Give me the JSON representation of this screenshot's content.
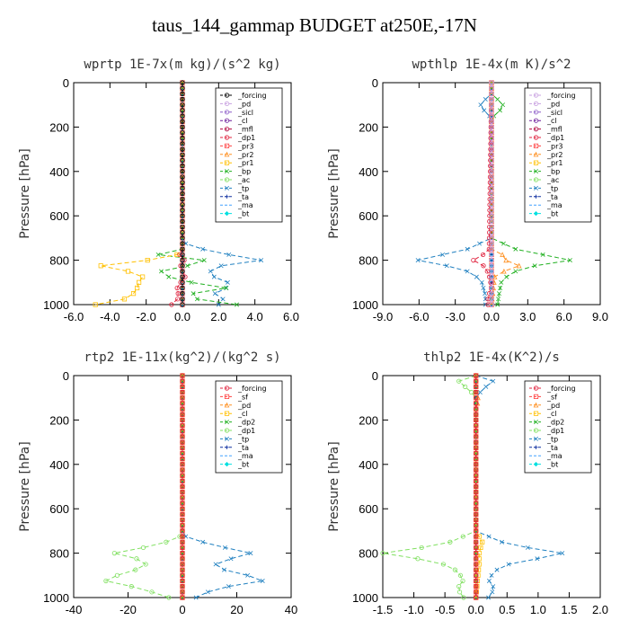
{
  "figure": {
    "title": "taus_144_gammap  BUDGET at250E,-17N"
  },
  "chart_data": [
    {
      "type": "line",
      "title": "wprtp  1E-7x(m kg)/(s^2 kg)",
      "ylabel": "Pressure [hPa]",
      "xlim": [
        -6,
        6
      ],
      "xticks": [
        -6,
        -4,
        -2,
        0,
        2,
        4,
        6
      ],
      "xtick_labels": [
        "-6.0",
        "-4.0",
        "-2.0",
        "0.0",
        "2.0",
        "4.0",
        "6.0"
      ],
      "ylim": [
        1000,
        0
      ],
      "yticks": [
        0,
        200,
        400,
        600,
        800,
        1000
      ],
      "legend_placement": "top-right",
      "series": [
        {
          "name": "_forcing",
          "color": "#000000",
          "marker": "o",
          "p": [
            0,
            1000
          ],
          "v": [
            0,
            0
          ]
        },
        {
          "name": "_pd",
          "color": "#c8a0e0",
          "marker": "o",
          "p": [
            0,
            1000
          ],
          "v": [
            0,
            0
          ]
        },
        {
          "name": "_sicl",
          "color": "#8c5cc8",
          "marker": "o",
          "p": [
            0,
            1000
          ],
          "v": [
            0,
            0
          ]
        },
        {
          "name": "_cl",
          "color": "#6a1a9a",
          "marker": "o",
          "p": [
            0,
            1000
          ],
          "v": [
            0,
            0
          ]
        },
        {
          "name": "_mfl",
          "color": "#b0003a",
          "marker": "o",
          "p": [
            0,
            1000
          ],
          "v": [
            0,
            0
          ]
        },
        {
          "name": "_dp1",
          "color": "#e0203c",
          "marker": "o",
          "p": [
            0,
            760,
            790,
            805,
            830,
            870,
            920,
            970,
            1000
          ],
          "v": [
            0,
            0,
            -0.3,
            0.3,
            -0.2,
            0.2,
            -0.3,
            -0.2,
            -0.6
          ]
        },
        {
          "name": "_pr3",
          "color": "#ff4040",
          "marker": "s",
          "p": [
            0,
            1000
          ],
          "v": [
            0,
            0
          ]
        },
        {
          "name": "_pr2",
          "color": "#ff9020",
          "marker": "^",
          "p": [
            0,
            1000
          ],
          "v": [
            0,
            0
          ]
        },
        {
          "name": "_pr1",
          "color": "#ffc000",
          "marker": "s",
          "p": [
            0,
            760,
            785,
            805,
            825,
            850,
            875,
            900,
            925,
            950,
            975,
            1000
          ],
          "v": [
            0,
            0,
            -0.5,
            -2.4,
            -4.5,
            -3.0,
            -2.2,
            -2.4,
            -2.5,
            -2.7,
            -3.2,
            -4.8
          ]
        },
        {
          "name": "_bp",
          "color": "#20b020",
          "marker": "x",
          "p": [
            0,
            750,
            780,
            810,
            830,
            860,
            900,
            930,
            960,
            1000
          ],
          "v": [
            0,
            0,
            -1.6,
            2.6,
            -0.5,
            -1.5,
            0.5,
            2.8,
            -0.5,
            3.0
          ]
        },
        {
          "name": "_ac",
          "color": "#80e060",
          "marker": "o",
          "p": [
            0,
            1000
          ],
          "v": [
            0,
            0
          ]
        },
        {
          "name": "_tp",
          "color": "#2080c0",
          "marker": "x",
          "p": [
            0,
            720,
            760,
            805,
            830,
            870,
            910,
            950,
            990,
            1000
          ],
          "v": [
            0,
            0,
            1.5,
            4.7,
            1.5,
            1.6,
            2.8,
            1.8,
            2.5,
            2.0
          ]
        },
        {
          "name": "_ta",
          "color": "#1030a0",
          "marker": "+",
          "p": [
            0,
            1000
          ],
          "v": [
            0,
            0
          ]
        },
        {
          "name": "_ma",
          "color": "#40a0ff",
          "marker": "-",
          "p": [
            0,
            1000
          ],
          "v": [
            0,
            0
          ]
        },
        {
          "name": "_bt",
          "color": "#00e0e0",
          "marker": "D",
          "p": [
            0,
            1000
          ],
          "v": [
            0,
            0
          ]
        }
      ]
    },
    {
      "type": "line",
      "title": "wpthlp  1E-4x(m K)/s^2",
      "ylabel": "Pressure [hPa]",
      "xlim": [
        -9,
        9
      ],
      "xticks": [
        -9,
        -6,
        -3,
        0,
        3,
        6,
        9
      ],
      "xtick_labels": [
        "-9.0",
        "-6.0",
        "-3.0",
        "0.0",
        "3.0",
        "6.0",
        "9.0"
      ],
      "ylim": [
        1000,
        0
      ],
      "yticks": [
        0,
        200,
        400,
        600,
        800,
        1000
      ],
      "legend_placement": "top-right",
      "series": [
        {
          "name": "_forcing",
          "color": "#c8a0e0",
          "marker": "o",
          "p": [
            0,
            1000
          ],
          "v": [
            0,
            0
          ]
        },
        {
          "name": "_pd",
          "color": "#c8a0e0",
          "marker": "o",
          "p": [
            0,
            1000
          ],
          "v": [
            0,
            0
          ]
        },
        {
          "name": "_sicl",
          "color": "#8c5cc8",
          "marker": "o",
          "p": [
            0,
            1000
          ],
          "v": [
            0,
            0
          ]
        },
        {
          "name": "_cl",
          "color": "#6a1a9a",
          "marker": "o",
          "p": [
            0,
            1000
          ],
          "v": [
            0,
            0
          ]
        },
        {
          "name": "_mfl",
          "color": "#b0003a",
          "marker": "o",
          "p": [
            0,
            1000
          ],
          "v": [
            0,
            0
          ]
        },
        {
          "name": "_dp1",
          "color": "#e0203c",
          "marker": "o",
          "p": [
            0,
            750,
            780,
            800,
            830,
            870,
            920,
            970,
            1000
          ],
          "v": [
            0,
            -0.2,
            -0.8,
            -1.5,
            -0.5,
            -0.2,
            0,
            -0.3,
            -0.3
          ]
        },
        {
          "name": "_pr3",
          "color": "#ff4040",
          "marker": "s",
          "p": [
            0,
            1000
          ],
          "v": [
            0,
            0
          ]
        },
        {
          "name": "_pr2",
          "color": "#ff9020",
          "marker": "^",
          "p": [
            0,
            760,
            785,
            800,
            830,
            860,
            1000
          ],
          "v": [
            0,
            0,
            1.5,
            1.2,
            2.5,
            0.3,
            0
          ]
        },
        {
          "name": "_pr1",
          "color": "#ffc000",
          "marker": "s",
          "p": [
            0,
            1000
          ],
          "v": [
            0,
            0
          ]
        },
        {
          "name": "_bp",
          "color": "#20b020",
          "marker": "x",
          "p": [
            0,
            60,
            90,
            120,
            160,
            700,
            750,
            800,
            830,
            860,
            900,
            960,
            1000
          ],
          "v": [
            0,
            0,
            1.0,
            0.8,
            0,
            0,
            2.0,
            6.5,
            3.0,
            1.5,
            0.8,
            0.6,
            0.5
          ]
        },
        {
          "name": "_ac",
          "color": "#80e060",
          "marker": "o",
          "p": [
            0,
            1000
          ],
          "v": [
            0,
            0
          ]
        },
        {
          "name": "_tp",
          "color": "#2080c0",
          "marker": "x",
          "p": [
            0,
            60,
            90,
            120,
            160,
            700,
            750,
            805,
            830,
            860,
            900,
            960,
            1000
          ],
          "v": [
            0,
            0,
            -1.0,
            -0.7,
            0,
            0,
            -2.0,
            -6.5,
            -3.0,
            -1.5,
            -0.8,
            -0.5,
            -0.5
          ]
        },
        {
          "name": "_ta",
          "color": "#1030a0",
          "marker": "+",
          "p": [
            0,
            1000
          ],
          "v": [
            0,
            0
          ]
        },
        {
          "name": "_ma",
          "color": "#40a0ff",
          "marker": "-",
          "p": [
            0,
            1000
          ],
          "v": [
            0,
            0
          ]
        },
        {
          "name": "_bt",
          "color": "#00e0e0",
          "marker": "D",
          "p": [
            0,
            1000
          ],
          "v": [
            0,
            0
          ]
        }
      ]
    },
    {
      "type": "line",
      "title": "rtp2  1E-11x(kg^2)/(kg^2 s)",
      "ylabel": "Pressure [hPa]",
      "xlim": [
        -40,
        40
      ],
      "xticks": [
        -40,
        -20,
        0,
        20,
        40
      ],
      "xtick_labels": [
        "-40",
        "-20",
        "0",
        "20",
        "40"
      ],
      "ylim": [
        1000,
        0
      ],
      "yticks": [
        0,
        200,
        400,
        600,
        800,
        1000
      ],
      "legend_placement": "top-right",
      "series": [
        {
          "name": "_forcing",
          "color": "#e0203c",
          "marker": "o",
          "p": [
            0,
            1000
          ],
          "v": [
            0,
            0
          ]
        },
        {
          "name": "_sf",
          "color": "#ff4040",
          "marker": "s",
          "p": [
            0,
            1000
          ],
          "v": [
            0,
            0
          ]
        },
        {
          "name": "_pd",
          "color": "#ff9020",
          "marker": "^",
          "p": [
            0,
            1000
          ],
          "v": [
            0,
            0
          ]
        },
        {
          "name": "_cl",
          "color": "#ffc000",
          "marker": "s",
          "p": [
            0,
            1000
          ],
          "v": [
            0,
            0
          ]
        },
        {
          "name": "_dp2",
          "color": "#20b020",
          "marker": "x",
          "p": [
            0,
            1000
          ],
          "v": [
            0,
            0
          ]
        },
        {
          "name": "_dp1",
          "color": "#80e060",
          "marker": "o",
          "p": [
            0,
            720,
            760,
            800,
            840,
            880,
            920,
            960,
            1000
          ],
          "v": [
            0,
            0,
            -8,
            -25,
            -12,
            -18,
            -30,
            -15,
            -5
          ]
        },
        {
          "name": "_tp",
          "color": "#2080c0",
          "marker": "x",
          "p": [
            0,
            720,
            760,
            805,
            840,
            880,
            920,
            960,
            1000
          ],
          "v": [
            0,
            0,
            10,
            27,
            11,
            16,
            32,
            12,
            5
          ]
        },
        {
          "name": "_ta",
          "color": "#1030a0",
          "marker": "+",
          "p": [
            0,
            1000
          ],
          "v": [
            0,
            0
          ]
        },
        {
          "name": "_ma",
          "color": "#40a0ff",
          "marker": "-",
          "p": [
            0,
            1000
          ],
          "v": [
            0,
            0
          ]
        },
        {
          "name": "_bt",
          "color": "#00e0e0",
          "marker": "D",
          "p": [
            0,
            1000
          ],
          "v": [
            0,
            0
          ]
        }
      ]
    },
    {
      "type": "line",
      "title": "thlp2  1E-4x(K^2)/s",
      "ylabel": "Pressure [hPa]",
      "xlim": [
        -1.5,
        2.0
      ],
      "xticks": [
        -1.5,
        -1.0,
        -0.5,
        0,
        0.5,
        1.0,
        1.5,
        2.0
      ],
      "xtick_labels": [
        "-1.5",
        "-1.0",
        "-0.5",
        "0.0",
        "0.5",
        "1.0",
        "1.5",
        "2.0"
      ],
      "ylim": [
        1000,
        0
      ],
      "yticks": [
        0,
        200,
        400,
        600,
        800,
        1000
      ],
      "legend_placement": "top-right",
      "series": [
        {
          "name": "_forcing",
          "color": "#e0203c",
          "marker": "o",
          "p": [
            0,
            1000
          ],
          "v": [
            0,
            0
          ]
        },
        {
          "name": "_sf",
          "color": "#ff4040",
          "marker": "s",
          "p": [
            0,
            1000
          ],
          "v": [
            0,
            0
          ]
        },
        {
          "name": "_pd",
          "color": "#ff9020",
          "marker": "^",
          "p": [
            0,
            80,
            110,
            140,
            1000
          ],
          "v": [
            0,
            0,
            0.05,
            0,
            0
          ]
        },
        {
          "name": "_cl",
          "color": "#ffc000",
          "marker": "s",
          "p": [
            0,
            700,
            750,
            800,
            850,
            1000
          ],
          "v": [
            0,
            0,
            0.1,
            0.05,
            0.05,
            0
          ]
        },
        {
          "name": "_dp2",
          "color": "#20b020",
          "marker": "x",
          "p": [
            0,
            1000
          ],
          "v": [
            0,
            0
          ]
        },
        {
          "name": "_dp1",
          "color": "#80e060",
          "marker": "o",
          "p": [
            0,
            20,
            40,
            60,
            80,
            100,
            700,
            760,
            800,
            840,
            880,
            920,
            960,
            1000
          ],
          "v": [
            0,
            -0.3,
            -0.2,
            -0.15,
            -0.05,
            0,
            0,
            -0.5,
            -1.5,
            -0.6,
            -0.3,
            -0.2,
            -0.3,
            -0.2
          ]
        },
        {
          "name": "_tp",
          "color": "#2080c0",
          "marker": "x",
          "p": [
            0,
            20,
            40,
            60,
            80,
            100,
            700,
            760,
            805,
            840,
            880,
            920,
            960,
            1000
          ],
          "v": [
            0,
            0.3,
            0.2,
            0.12,
            0.05,
            0,
            0,
            0.5,
            1.5,
            0.6,
            0.3,
            0.2,
            0.3,
            0.2
          ]
        },
        {
          "name": "_ta",
          "color": "#1030a0",
          "marker": "+",
          "p": [
            0,
            1000
          ],
          "v": [
            0,
            0
          ]
        },
        {
          "name": "_ma",
          "color": "#40a0ff",
          "marker": "-",
          "p": [
            0,
            1000
          ],
          "v": [
            0,
            0
          ]
        },
        {
          "name": "_bt",
          "color": "#00e0e0",
          "marker": "D",
          "p": [
            0,
            1000
          ],
          "v": [
            0,
            0
          ]
        }
      ]
    }
  ]
}
